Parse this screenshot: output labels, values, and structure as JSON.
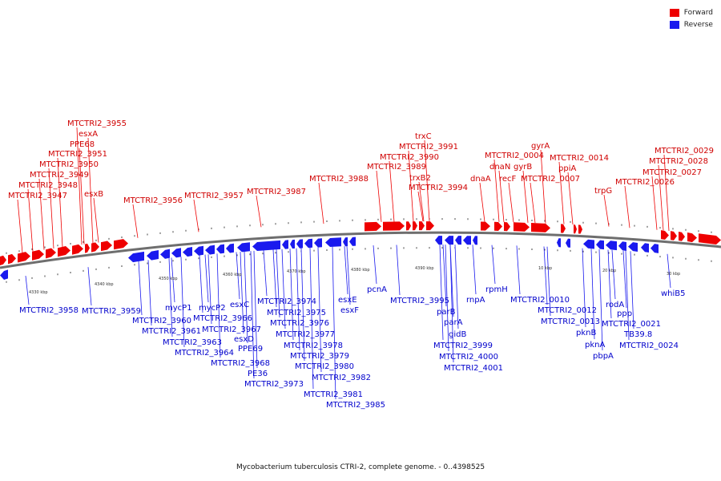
{
  "colors": {
    "forward": "#ee0000",
    "reverse": "#1a1aee",
    "backbone": "#6e6e6e"
  },
  "legend": {
    "forward_label": "Forward",
    "reverse_label": "Reverse"
  },
  "caption": "Mycobacterium tuberculosis CTRI-2, complete genome. - 0..4398525",
  "scale_labels": [
    "4330 kbp",
    "4340 kbp",
    "4350 kbp",
    "4360 kbp",
    "4370 kbp",
    "4380 kbp",
    "4390 kbp",
    "10 kbp",
    "20 kbp",
    "30 kbp"
  ],
  "forward_labels": [
    "MTCTRI2_3955",
    "esxA",
    "PPE68",
    "MTCTRI2_3951",
    "MTCTRI2_3950",
    "MTCTRI2_3949",
    "MTCTRI2_3948",
    "MTCTRI2_3947",
    "esxB",
    "MTCTRI2_3956",
    "MTCTRI2_3957",
    "MTCTRI2_3987",
    "MTCTRI2_3988",
    "trxC",
    "MTCTRI2_3991",
    "MTCTRI2_3990",
    "MTCTRI2_3989",
    "trxB2",
    "MTCTRI2_3994",
    "dnaA",
    "MTCTRI2_0004",
    "dnaN",
    "recF",
    "gyrB",
    "gyrA",
    "MTCTRI2_0007",
    "MTCTRI2_0014",
    "ppiA",
    "trpG",
    "MTCTRI2_0029",
    "MTCTRI2_0028",
    "MTCTRI2_0027",
    "MTCTRI2_0026"
  ],
  "reverse_labels": [
    "MTCTRI2_3958",
    "MTCTRI2_3959",
    "MTCTRI2_3960",
    "MTCTRI2_3961",
    "mycP1",
    "MTCTRI2_3963",
    "MTCTRI2_3964",
    "mycP2",
    "MTCTRI2_3966",
    "MTCTRI2_3967",
    "esxC",
    "esxD",
    "PPE69",
    "MTCTRI2_3968",
    "PE36",
    "MTCTRI2_3973",
    "MTCTRI2_3974",
    "MTCTRI2_3975",
    "MTCTRI2_3976",
    "MTCTRI2_3977",
    "MTCTRI2_3978",
    "MTCTRI2_3979",
    "MTCTRI2_3980",
    "MTCTRI2_3982",
    "MTCTRI2_3981",
    "MTCTRI2_3985",
    "esxE",
    "esxF",
    "pcnA",
    "MTCTRI2_3995",
    "parB",
    "parA",
    "gidB",
    "MTCTRI2_3999",
    "MTCTRI2_4000",
    "MTCTRI2_4001",
    "rnpA",
    "rpmH",
    "MTCTRI2_0010",
    "MTCTRI2_0012",
    "MTCTRI2_0013",
    "pknB",
    "pknA",
    "pbpA",
    "rodA",
    "ppp",
    "MTCTRI2_0021",
    "TB39.8",
    "MTCTRI2_0024",
    "whiB5"
  ]
}
